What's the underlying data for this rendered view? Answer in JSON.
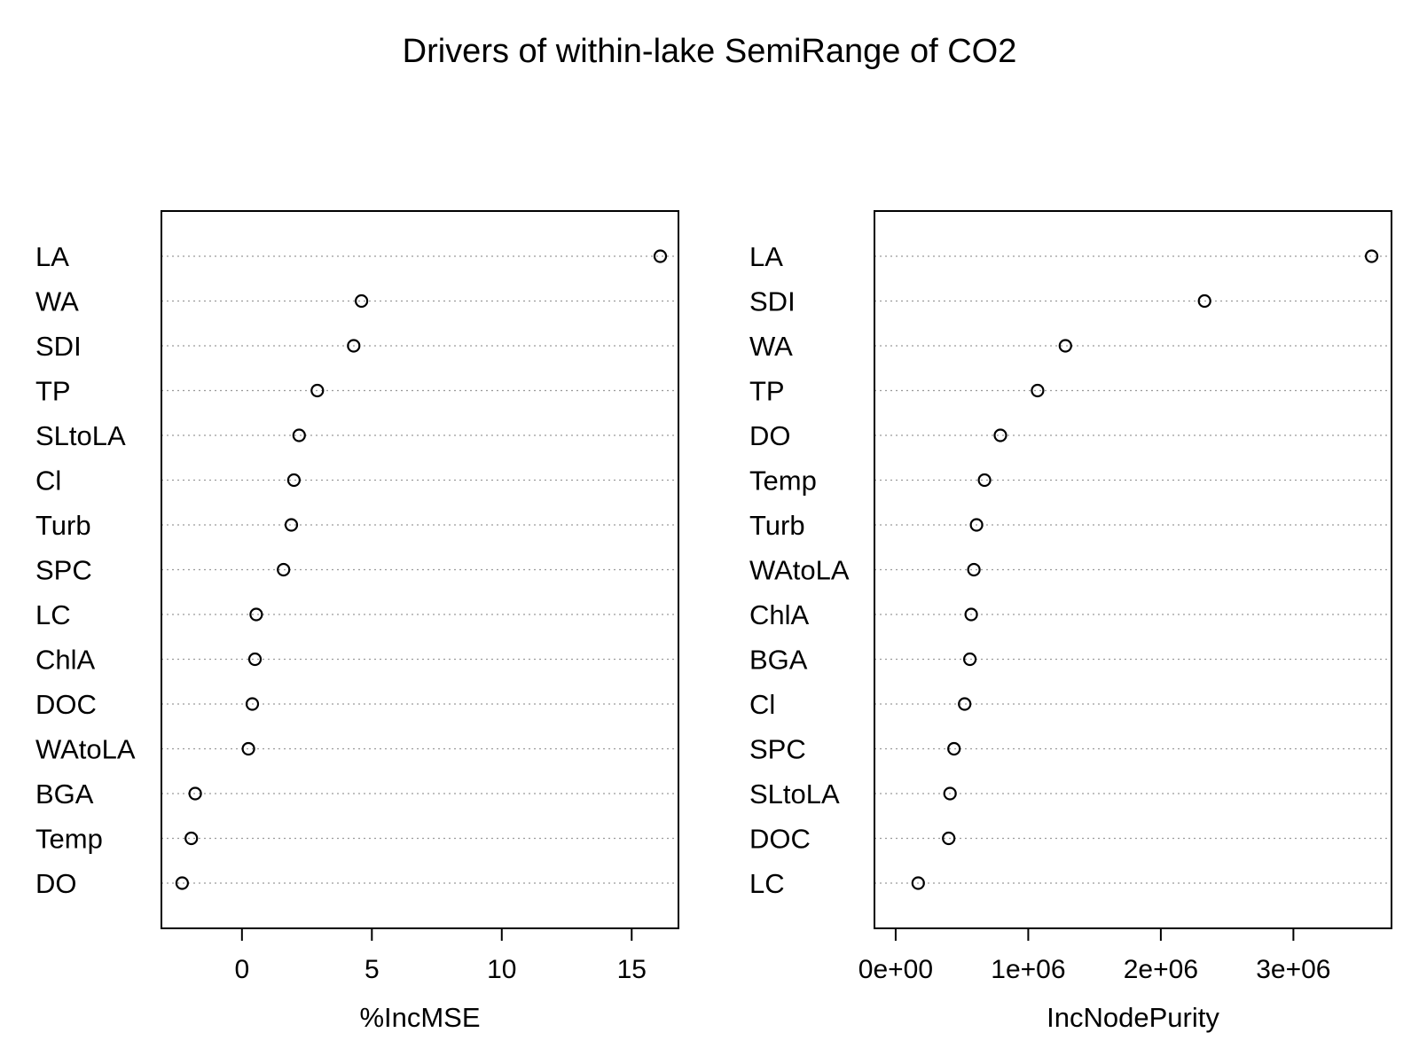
{
  "title": "Drivers of within-lake SemiRange of CO2",
  "chart_data": [
    {
      "type": "scatter",
      "xlabel": "%IncMSE",
      "xlim": [
        -3.1,
        16.8
      ],
      "xticks": [
        0,
        5,
        10,
        15
      ],
      "xtick_labels": [
        "0",
        "5",
        "10",
        "15"
      ],
      "grid": "dotted horizontal guides",
      "categories": [
        "LA",
        "WA",
        "SDI",
        "TP",
        "SLtoLA",
        "Cl",
        "Turb",
        "SPC",
        "LC",
        "ChlA",
        "DOC",
        "WAtoLA",
        "BGA",
        "Temp",
        "DO"
      ],
      "values": [
        16.1,
        4.6,
        4.3,
        2.9,
        2.2,
        2.0,
        1.9,
        1.6,
        0.55,
        0.5,
        0.4,
        0.25,
        -1.8,
        -1.95,
        -2.3
      ]
    },
    {
      "type": "scatter",
      "xlabel": "IncNodePurity",
      "xlim": [
        -160000,
        3740000
      ],
      "xticks": [
        0,
        1000000,
        2000000,
        3000000
      ],
      "xtick_labels": [
        "0e+00",
        "1e+06",
        "2e+06",
        "3e+06"
      ],
      "grid": "dotted horizontal guides",
      "categories": [
        "LA",
        "SDI",
        "WA",
        "TP",
        "DO",
        "Temp",
        "Turb",
        "WAtoLA",
        "ChlA",
        "BGA",
        "Cl",
        "SPC",
        "SLtoLA",
        "DOC",
        "LC"
      ],
      "values": [
        3590000,
        2330000,
        1280000,
        1070000,
        790000,
        670000,
        610000,
        590000,
        570000,
        560000,
        520000,
        440000,
        410000,
        400000,
        170000
      ]
    }
  ]
}
